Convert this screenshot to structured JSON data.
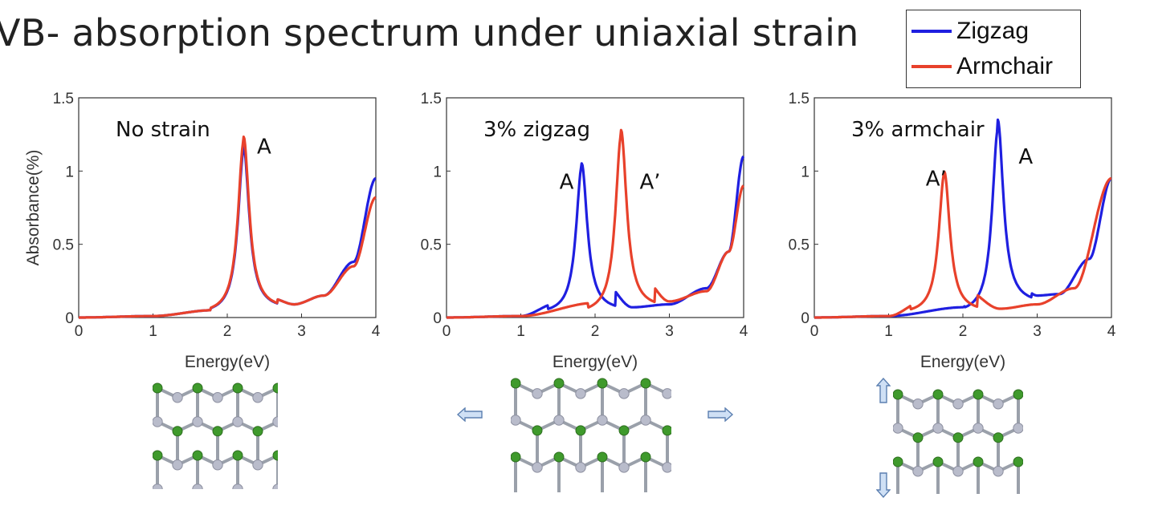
{
  "slide": {
    "title": "VB- absorption spectrum under uniaxial strain"
  },
  "legend": {
    "items": [
      {
        "label": "Zigzag",
        "color": "#1f1fe0"
      },
      {
        "label": "Armchair",
        "color": "#e8412b"
      }
    ]
  },
  "colors": {
    "zigzag": "#1f1fe0",
    "armchair": "#e8412b",
    "atom_green": "#3f9a2c",
    "atom_gray": "#b9bccb",
    "arrow_fill": "#cfe0f5",
    "arrow_stroke": "#5b7fb0"
  },
  "chart_data": [
    {
      "type": "line",
      "annotation": "No strain",
      "xlabel": "Energy(eV)",
      "ylabel": "Absorbance(%)",
      "xlim": [
        0,
        4
      ],
      "ylim": [
        0,
        1.5
      ],
      "xticks": [
        0,
        1,
        2,
        3,
        4
      ],
      "yticks": [
        0,
        0.5,
        1,
        1.5
      ],
      "ytick_labels": [
        "0",
        "0.5",
        "1",
        "1.5"
      ],
      "grid": false,
      "series": [
        {
          "name": "Zigzag",
          "peak_x": 2.22,
          "peak_y": 1.12,
          "width": 0.09,
          "base": 0.09,
          "end_y": 0.95,
          "points": [
            [
              0,
              0.0
            ],
            [
              1,
              0.01
            ],
            [
              1.8,
              0.05
            ],
            [
              2.0,
              0.25
            ],
            [
              2.22,
              1.12
            ],
            [
              2.4,
              0.35
            ],
            [
              2.6,
              0.13
            ],
            [
              2.9,
              0.09
            ],
            [
              3.3,
              0.15
            ],
            [
              3.7,
              0.38
            ],
            [
              4.0,
              0.95
            ]
          ]
        },
        {
          "name": "Armchair",
          "peak_x": 2.22,
          "peak_y": 1.18,
          "width": 0.09,
          "base": 0.09,
          "end_y": 0.82,
          "points": [
            [
              0,
              0.0
            ],
            [
              1,
              0.01
            ],
            [
              1.8,
              0.05
            ],
            [
              2.0,
              0.25
            ],
            [
              2.22,
              1.18
            ],
            [
              2.4,
              0.35
            ],
            [
              2.6,
              0.13
            ],
            [
              2.9,
              0.09
            ],
            [
              3.3,
              0.15
            ],
            [
              3.7,
              0.35
            ],
            [
              4.0,
              0.82
            ]
          ]
        }
      ],
      "peak_labels": [
        {
          "text": "A",
          "x": 2.4,
          "y": 1.12
        }
      ]
    },
    {
      "type": "line",
      "annotation": "3% zigzag",
      "xlabel": "Energy(eV)",
      "ylabel": "",
      "xlim": [
        0,
        4
      ],
      "ylim": [
        0,
        1.5
      ],
      "xticks": [
        0,
        1,
        2,
        3,
        4
      ],
      "yticks": [
        0,
        0.5,
        1,
        1.5
      ],
      "ytick_labels": [
        "0",
        "0.5",
        "1",
        "1.5"
      ],
      "grid": false,
      "series": [
        {
          "name": "Zigzag",
          "peak_x": 1.82,
          "peak_y": 1.01,
          "width": 0.09,
          "base": 0.07,
          "end_y": 1.1,
          "points": [
            [
              0,
              0.0
            ],
            [
              1,
              0.01
            ],
            [
              1.5,
              0.1
            ],
            [
              1.82,
              1.01
            ],
            [
              2.1,
              0.25
            ],
            [
              2.5,
              0.07
            ],
            [
              3.0,
              0.09
            ],
            [
              3.5,
              0.2
            ],
            [
              3.8,
              0.45
            ],
            [
              4.0,
              1.1
            ]
          ]
        },
        {
          "name": "Armchair",
          "peak_x": 2.35,
          "peak_y": 1.22,
          "width": 0.09,
          "base": 0.1,
          "end_y": 0.9,
          "points": [
            [
              0,
              0.0
            ],
            [
              1,
              0.01
            ],
            [
              2.0,
              0.1
            ],
            [
              2.35,
              1.22
            ],
            [
              2.6,
              0.3
            ],
            [
              3.0,
              0.11
            ],
            [
              3.5,
              0.18
            ],
            [
              3.8,
              0.45
            ],
            [
              4.0,
              0.9
            ]
          ]
        }
      ],
      "peak_labels": [
        {
          "text": "A",
          "x": 1.52,
          "y": 0.88
        },
        {
          "text": "A’",
          "x": 2.6,
          "y": 0.88
        }
      ]
    },
    {
      "type": "line",
      "annotation": "3% armchair",
      "xlabel": "Energy(eV)",
      "ylabel": "",
      "xlim": [
        0,
        4
      ],
      "ylim": [
        0,
        1.5
      ],
      "xticks": [
        0,
        1,
        2,
        3,
        4
      ],
      "yticks": [
        0,
        0.5,
        1,
        1.5
      ],
      "ytick_labels": [
        "0",
        "0.5",
        "1",
        "1.5"
      ],
      "grid": false,
      "series": [
        {
          "name": "Zigzag",
          "peak_x": 2.47,
          "peak_y": 1.26,
          "width": 0.09,
          "base": 0.15,
          "end_y": 0.95,
          "points": [
            [
              0,
              0.0
            ],
            [
              1,
              0.01
            ],
            [
              2.0,
              0.07
            ],
            [
              2.47,
              1.26
            ],
            [
              2.8,
              0.2
            ],
            [
              3.0,
              0.15
            ],
            [
              3.3,
              0.16
            ],
            [
              3.7,
              0.4
            ],
            [
              4.0,
              0.95
            ]
          ]
        },
        {
          "name": "Armchair",
          "peak_x": 1.75,
          "peak_y": 0.96,
          "width": 0.09,
          "base": 0.06,
          "end_y": 0.95,
          "points": [
            [
              0,
              0.0
            ],
            [
              1,
              0.01
            ],
            [
              1.5,
              0.12
            ],
            [
              1.75,
              0.96
            ],
            [
              2.0,
              0.2
            ],
            [
              2.5,
              0.06
            ],
            [
              3.0,
              0.09
            ],
            [
              3.5,
              0.2
            ],
            [
              4.0,
              0.95
            ]
          ]
        }
      ],
      "peak_labels": [
        {
          "text": "A’",
          "x": 1.5,
          "y": 0.9
        },
        {
          "text": "A",
          "x": 2.75,
          "y": 1.05
        }
      ]
    }
  ]
}
